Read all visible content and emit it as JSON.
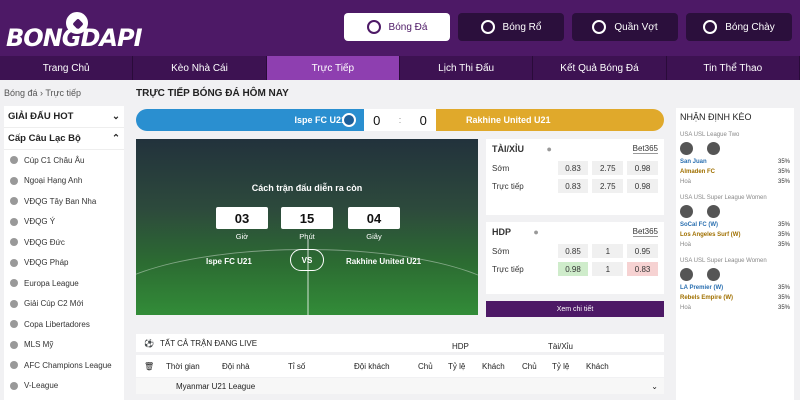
{
  "logo": {
    "text": "BONGDAPI"
  },
  "sports": [
    {
      "label": "Bóng Đá",
      "active": true
    },
    {
      "label": "Bóng Rổ"
    },
    {
      "label": "Quần Vợt"
    },
    {
      "label": "Bóng Chày"
    }
  ],
  "nav": [
    "Trang Chủ",
    "Kèo Nhà Cái",
    "Trực Tiếp",
    "Lịch Thi Đấu",
    "Kết Quả Bóng Đá",
    "Tin Thể Thao"
  ],
  "breadcrumb": "Bóng đá › Trực tiếp",
  "sidebar": {
    "hot_title": "GIẢI ĐẤU HOT",
    "club_title": "Cấp Câu Lạc Bộ",
    "items": [
      "Cúp C1 Châu Âu",
      "Ngoại Hạng Anh",
      "VĐQG Tây Ban Nha",
      "VĐQG Ý",
      "VĐQG Đức",
      "VĐQG Pháp",
      "Europa League",
      "Giải Cúp C2 Mới",
      "Copa Libertadores",
      "MLS Mỹ",
      "AFC Champions League",
      "V-League"
    ]
  },
  "page_title": "TRỰC TIẾP BÓNG ĐÁ HÔM NAY",
  "match": {
    "home": "Ispe FC U21",
    "away": "Rakhine United U21",
    "home_score": "0",
    "away_score": "0",
    "sep": ":"
  },
  "countdown": {
    "title": "Cách trận đấu diễn ra còn",
    "hours": "03",
    "hours_label": "Giờ",
    "minutes": "15",
    "minutes_label": "Phút",
    "seconds": "04",
    "seconds_label": "Giây",
    "vs": "VS"
  },
  "taixiu": {
    "title": "TÀI/XỈU",
    "bookie": "Bet365",
    "rows": [
      {
        "label": "Sớm",
        "v": [
          "0.83",
          "2.75",
          "0.98"
        ]
      },
      {
        "label": "Trực tiếp",
        "v": [
          "0.83",
          "2.75",
          "0.98"
        ]
      }
    ]
  },
  "hdp": {
    "title": "HDP",
    "bookie": "Bet365",
    "rows": [
      {
        "label": "Sớm",
        "v": [
          "0.85",
          "1",
          "0.95"
        ]
      },
      {
        "label": "Trực tiếp",
        "v": [
          "0.98",
          "1",
          "0.83"
        ]
      }
    ]
  },
  "xem": "Xem chi tiết",
  "live": {
    "title": "TẤT CẢ TRẬN ĐANG LIVE",
    "hdp": "HDP",
    "taixiu": "Tài/Xỉu",
    "cols": [
      "Thời gian",
      "Đội nhà",
      "Tỉ số",
      "Đội khách",
      "Chủ",
      "Tỷ lệ",
      "Khách",
      "Chủ",
      "Tỷ lệ",
      "Khách"
    ],
    "league": "Myanmar U21 League"
  },
  "nhandinh": {
    "title": "NHẬN ĐỊNH KÈO",
    "blocks": [
      {
        "league": "USA USL League Two",
        "home": "San Juan",
        "away": "Almaden FC",
        "draw": "Hoà",
        "p": [
          "35%",
          "35%",
          "35%"
        ]
      },
      {
        "league": "USA USL Super League Women",
        "home": "SoCal FC (W)",
        "away": "Los Angeles Surf (W)",
        "draw": "Hoà",
        "p": [
          "35%",
          "35%",
          "35%"
        ]
      },
      {
        "league": "USA USL Super League Women",
        "home": "LA Premier (W)",
        "away": "Rebels Empire (W)",
        "draw": "Hoà",
        "p": [
          "35%",
          "35%",
          "35%"
        ]
      }
    ]
  }
}
